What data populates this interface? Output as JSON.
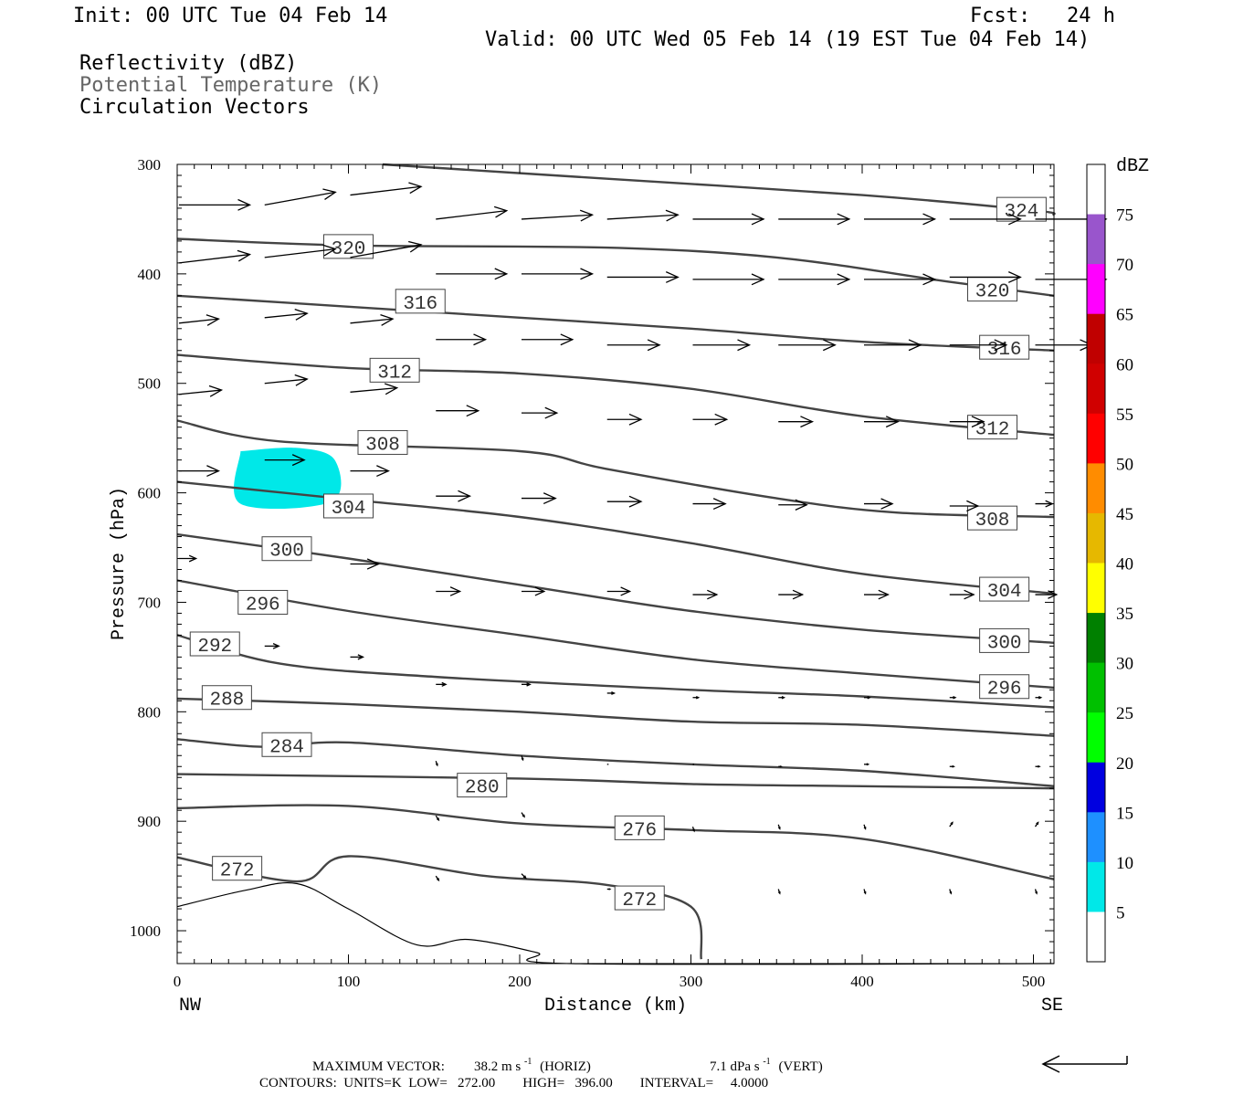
{
  "header": {
    "init": "Init: 00 UTC Tue 04 Feb 14",
    "fcst": "Fcst:   24 h",
    "valid": "Valid: 00 UTC Wed 05 Feb 14 (19 EST Tue 04 Feb 14)",
    "field1": "Reflectivity (dBZ)",
    "field2": "Potential Temperature (K)",
    "field3": "Circulation Vectors"
  },
  "colors": {
    "field2_text": "#666666",
    "contour": "#444444",
    "reflectivity_fill": "#00e8e8"
  },
  "chart_data": {
    "type": "vertical cross-section",
    "xlabel": "Distance (km)",
    "ylabel": "Pressure (hPa)",
    "xlim": [
      0,
      512
    ],
    "ylim": [
      1030,
      300
    ],
    "x_ticks": [
      0,
      100,
      200,
      300,
      400,
      500
    ],
    "y_ticks": [
      300,
      400,
      500,
      600,
      700,
      800,
      900,
      1000
    ],
    "left_label": "NW",
    "right_label": "SE",
    "theta_contours": [
      {
        "value": 324,
        "label_at": [
          493,
          341
        ],
        "points": [
          [
            120,
            300
          ],
          [
            250,
            313
          ],
          [
            400,
            328
          ],
          [
            500,
            342
          ],
          [
            512,
            346
          ]
        ]
      },
      {
        "value": 320,
        "label_at": [
          100,
          375
        ],
        "points": [
          [
            0,
            368
          ],
          [
            100,
            374
          ],
          [
            250,
            376
          ],
          [
            350,
            385
          ],
          [
            450,
            407
          ],
          [
            512,
            420
          ]
        ]
      },
      {
        "value": 320,
        "label_at": [
          476,
          414
        ],
        "points": []
      },
      {
        "value": 316,
        "label_at": [
          142,
          425
        ],
        "points": [
          [
            0,
            420
          ],
          [
            100,
            430
          ],
          [
            200,
            440
          ],
          [
            300,
            450
          ],
          [
            400,
            462
          ],
          [
            512,
            470
          ]
        ]
      },
      {
        "value": 316,
        "label_at": [
          483,
          467
        ],
        "points": []
      },
      {
        "value": 312,
        "label_at": [
          127,
          488
        ],
        "points": [
          [
            0,
            474
          ],
          [
            100,
            486
          ],
          [
            200,
            491
          ],
          [
            300,
            505
          ],
          [
            400,
            530
          ],
          [
            512,
            547
          ]
        ]
      },
      {
        "value": 312,
        "label_at": [
          476,
          540
        ],
        "points": []
      },
      {
        "value": 308,
        "label_at": [
          120,
          554
        ],
        "points": [
          [
            0,
            534
          ],
          [
            60,
            553
          ],
          [
            200,
            562
          ],
          [
            250,
            578
          ],
          [
            350,
            605
          ],
          [
            420,
            618
          ],
          [
            512,
            622
          ]
        ]
      },
      {
        "value": 308,
        "label_at": [
          476,
          623
        ],
        "points": []
      },
      {
        "value": 304,
        "label_at": [
          100,
          612
        ],
        "points": [
          [
            0,
            590
          ],
          [
            100,
            606
          ],
          [
            200,
            622
          ],
          [
            300,
            646
          ],
          [
            400,
            674
          ],
          [
            512,
            692
          ]
        ]
      },
      {
        "value": 304,
        "label_at": [
          483,
          688
        ],
        "points": []
      },
      {
        "value": 300,
        "label_at": [
          64,
          651
        ],
        "points": [
          [
            0,
            638
          ],
          [
            100,
            660
          ],
          [
            200,
            684
          ],
          [
            300,
            708
          ],
          [
            400,
            725
          ],
          [
            512,
            737
          ]
        ]
      },
      {
        "value": 300,
        "label_at": [
          483,
          735
        ],
        "points": []
      },
      {
        "value": 296,
        "label_at": [
          50,
          700
        ],
        "points": [
          [
            0,
            680
          ],
          [
            100,
            708
          ],
          [
            200,
            730
          ],
          [
            300,
            752
          ],
          [
            400,
            765
          ],
          [
            512,
            778
          ]
        ]
      },
      {
        "value": 296,
        "label_at": [
          483,
          777
        ],
        "points": []
      },
      {
        "value": 292,
        "label_at": [
          22,
          738
        ],
        "points": [
          [
            0,
            730
          ],
          [
            60,
            756
          ],
          [
            150,
            768
          ],
          [
            300,
            780
          ],
          [
            400,
            786
          ],
          [
            512,
            796
          ]
        ]
      },
      {
        "value": 288,
        "label_at": [
          29,
          787
        ],
        "points": [
          [
            0,
            788
          ],
          [
            100,
            793
          ],
          [
            200,
            800
          ],
          [
            300,
            809
          ],
          [
            400,
            812
          ],
          [
            512,
            822
          ]
        ]
      },
      {
        "value": 284,
        "label_at": [
          64,
          830
        ],
        "points": [
          [
            0,
            825
          ],
          [
            50,
            832
          ],
          [
            100,
            828
          ],
          [
            200,
            840
          ],
          [
            300,
            848
          ],
          [
            400,
            854
          ],
          [
            512,
            868
          ]
        ]
      },
      {
        "value": 280,
        "label_at": [
          178,
          867
        ],
        "points": [
          [
            0,
            857
          ],
          [
            200,
            861
          ],
          [
            300,
            866
          ],
          [
            400,
            868
          ],
          [
            512,
            870
          ]
        ]
      },
      {
        "value": 276,
        "label_at": [
          270,
          906
        ],
        "points": [
          [
            0,
            888
          ],
          [
            100,
            886
          ],
          [
            200,
            902
          ],
          [
            300,
            908
          ],
          [
            400,
            916
          ],
          [
            512,
            953
          ]
        ]
      },
      {
        "value": 272,
        "label_at": [
          35,
          943
        ],
        "points": [
          [
            0,
            933
          ],
          [
            70,
            955
          ],
          [
            100,
            932
          ],
          [
            180,
            950
          ],
          [
            250,
            958
          ],
          [
            300,
            978
          ],
          [
            306,
            1026
          ]
        ]
      },
      {
        "value": 272,
        "label_at": [
          270,
          970
        ],
        "points": []
      }
    ],
    "terrain_pressure": [
      [
        0,
        978
      ],
      [
        40,
        963
      ],
      [
        70,
        957
      ],
      [
        100,
        980
      ],
      [
        140,
        1013
      ],
      [
        170,
        1008
      ],
      [
        210,
        1020
      ],
      [
        230,
        1030
      ],
      [
        512,
        1030
      ]
    ],
    "reflectivity_areas": [
      {
        "dbz": "5-10",
        "points": [
          [
            37,
            562
          ],
          [
            70,
            559
          ],
          [
            92,
            570
          ],
          [
            90,
            608
          ],
          [
            37,
            610
          ]
        ]
      }
    ],
    "circulation_vectors": [
      {
        "x": 0,
        "p": 337,
        "u": 50,
        "w": 0
      },
      {
        "x": 50,
        "p": 337,
        "u": 50,
        "w": -3
      },
      {
        "x": 100,
        "p": 328,
        "u": 50,
        "w": -2
      },
      {
        "x": 150,
        "p": 350,
        "u": 50,
        "w": -2
      },
      {
        "x": 200,
        "p": 350,
        "u": 50,
        "w": -1
      },
      {
        "x": 250,
        "p": 350,
        "u": 50,
        "w": -1
      },
      {
        "x": 300,
        "p": 350,
        "u": 50,
        "w": 0
      },
      {
        "x": 350,
        "p": 350,
        "u": 50,
        "w": 0
      },
      {
        "x": 400,
        "p": 350,
        "u": 50,
        "w": 0
      },
      {
        "x": 450,
        "p": 350,
        "u": 50,
        "w": 0
      },
      {
        "x": 500,
        "p": 350,
        "u": 50,
        "w": 0
      },
      {
        "x": 0,
        "p": 390,
        "u": 50,
        "w": -2
      },
      {
        "x": 50,
        "p": 385,
        "u": 50,
        "w": -2
      },
      {
        "x": 100,
        "p": 385,
        "u": 50,
        "w": -3
      },
      {
        "x": 150,
        "p": 400,
        "u": 50,
        "w": 0
      },
      {
        "x": 200,
        "p": 400,
        "u": 50,
        "w": 0
      },
      {
        "x": 250,
        "p": 403,
        "u": 50,
        "w": 0
      },
      {
        "x": 300,
        "p": 405,
        "u": 50,
        "w": 0
      },
      {
        "x": 350,
        "p": 405,
        "u": 50,
        "w": 0
      },
      {
        "x": 400,
        "p": 405,
        "u": 50,
        "w": 0
      },
      {
        "x": 450,
        "p": 403,
        "u": 50,
        "w": 0
      },
      {
        "x": 500,
        "p": 405,
        "u": 50,
        "w": 0
      },
      {
        "x": 0,
        "p": 445,
        "u": 28,
        "w": -1
      },
      {
        "x": 50,
        "p": 440,
        "u": 30,
        "w": -1
      },
      {
        "x": 100,
        "p": 445,
        "u": 30,
        "w": -1
      },
      {
        "x": 150,
        "p": 460,
        "u": 35,
        "w": 0
      },
      {
        "x": 200,
        "p": 460,
        "u": 36,
        "w": 0
      },
      {
        "x": 250,
        "p": 465,
        "u": 37,
        "w": 0
      },
      {
        "x": 300,
        "p": 465,
        "u": 40,
        "w": 0
      },
      {
        "x": 350,
        "p": 465,
        "u": 40,
        "w": 0
      },
      {
        "x": 400,
        "p": 465,
        "u": 40,
        "w": 0
      },
      {
        "x": 450,
        "p": 465,
        "u": 40,
        "w": 0
      },
      {
        "x": 500,
        "p": 465,
        "u": 40,
        "w": 0
      },
      {
        "x": 0,
        "p": 510,
        "u": 30,
        "w": -1
      },
      {
        "x": 50,
        "p": 500,
        "u": 30,
        "w": -1
      },
      {
        "x": 100,
        "p": 508,
        "u": 33,
        "w": -1
      },
      {
        "x": 150,
        "p": 525,
        "u": 30,
        "w": 0
      },
      {
        "x": 200,
        "p": 527,
        "u": 25,
        "w": 0
      },
      {
        "x": 250,
        "p": 533,
        "u": 24,
        "w": 0
      },
      {
        "x": 300,
        "p": 533,
        "u": 24,
        "w": 0
      },
      {
        "x": 350,
        "p": 535,
        "u": 24,
        "w": 0
      },
      {
        "x": 400,
        "p": 535,
        "u": 24,
        "w": 0
      },
      {
        "x": 450,
        "p": 535,
        "u": 24,
        "w": 0
      },
      {
        "x": 0,
        "p": 580,
        "u": 28,
        "w": 0
      },
      {
        "x": 50,
        "p": 570,
        "u": 28,
        "w": 0
      },
      {
        "x": 100,
        "p": 580,
        "u": 27,
        "w": 0
      },
      {
        "x": 150,
        "p": 603,
        "u": 24,
        "w": 0
      },
      {
        "x": 200,
        "p": 605,
        "u": 24,
        "w": 0
      },
      {
        "x": 250,
        "p": 608,
        "u": 24,
        "w": 0
      },
      {
        "x": 300,
        "p": 610,
        "u": 23,
        "w": 0
      },
      {
        "x": 350,
        "p": 611,
        "u": 20,
        "w": 0
      },
      {
        "x": 400,
        "p": 610,
        "u": 20,
        "w": 0
      },
      {
        "x": 450,
        "p": 612,
        "u": 20,
        "w": 0
      },
      {
        "x": 500,
        "p": 610,
        "u": 12,
        "w": 0
      },
      {
        "x": 0,
        "p": 660,
        "u": 12,
        "w": 0
      },
      {
        "x": 100,
        "p": 665,
        "u": 20,
        "w": 0
      },
      {
        "x": 150,
        "p": 690,
        "u": 17,
        "w": 0
      },
      {
        "x": 200,
        "p": 690,
        "u": 16,
        "w": 0
      },
      {
        "x": 250,
        "p": 690,
        "u": 16,
        "w": 0
      },
      {
        "x": 300,
        "p": 693,
        "u": 17,
        "w": 0
      },
      {
        "x": 350,
        "p": 693,
        "u": 17,
        "w": 0
      },
      {
        "x": 400,
        "p": 693,
        "u": 17,
        "w": 0
      },
      {
        "x": 450,
        "p": 693,
        "u": 17,
        "w": 0
      },
      {
        "x": 500,
        "p": 693,
        "u": 15,
        "w": 0
      },
      {
        "x": 50,
        "p": 740,
        "u": 10,
        "w": 0
      },
      {
        "x": 100,
        "p": 750,
        "u": 9,
        "w": 0
      },
      {
        "x": 150,
        "p": 775,
        "u": 7,
        "w": 0
      },
      {
        "x": 200,
        "p": 775,
        "u": 6,
        "w": 0
      },
      {
        "x": 250,
        "p": 783,
        "u": 5,
        "w": 0
      },
      {
        "x": 300,
        "p": 787,
        "u": 4,
        "w": 0
      },
      {
        "x": 350,
        "p": 787,
        "u": 4,
        "w": 0
      },
      {
        "x": 400,
        "p": 787,
        "u": 4,
        "w": 0
      },
      {
        "x": 450,
        "p": 787,
        "u": 4,
        "w": 0
      },
      {
        "x": 500,
        "p": 787,
        "u": 4,
        "w": 0
      },
      {
        "x": 150,
        "p": 845,
        "u": 1,
        "w": 1
      },
      {
        "x": 200,
        "p": 840,
        "u": 1,
        "w": 1
      },
      {
        "x": 250,
        "p": 848,
        "u": 1,
        "w": 0
      },
      {
        "x": 300,
        "p": 848,
        "u": 1,
        "w": 0
      },
      {
        "x": 350,
        "p": 850,
        "u": 2,
        "w": 0
      },
      {
        "x": 400,
        "p": 848,
        "u": 3,
        "w": 0
      },
      {
        "x": 450,
        "p": 850,
        "u": 3,
        "w": 0
      },
      {
        "x": 500,
        "p": 850,
        "u": 3,
        "w": 0
      },
      {
        "x": 150,
        "p": 895,
        "u": 2,
        "w": 1
      },
      {
        "x": 200,
        "p": 892,
        "u": 2,
        "w": 1
      },
      {
        "x": 300,
        "p": 905,
        "u": 1,
        "w": 1
      },
      {
        "x": 350,
        "p": 903,
        "u": 1,
        "w": 1
      },
      {
        "x": 400,
        "p": 903,
        "u": 1,
        "w": 1
      },
      {
        "x": 450,
        "p": 905,
        "u": 2,
        "w": -1
      },
      {
        "x": 500,
        "p": 905,
        "u": 2,
        "w": -1
      },
      {
        "x": 150,
        "p": 950,
        "u": 2,
        "w": 1
      },
      {
        "x": 200,
        "p": 948,
        "u": 3,
        "w": 1
      },
      {
        "x": 250,
        "p": 962,
        "u": 2,
        "w": 0
      },
      {
        "x": 350,
        "p": 962,
        "u": 1,
        "w": 1
      },
      {
        "x": 400,
        "p": 962,
        "u": 1,
        "w": 1
      },
      {
        "x": 450,
        "p": 962,
        "u": 1,
        "w": 1
      },
      {
        "x": 500,
        "p": 962,
        "u": 1,
        "w": 1
      }
    ],
    "colorbar": {
      "title": "dBZ",
      "labels": [
        "75",
        "70",
        "65",
        "60",
        "55",
        "50",
        "45",
        "40",
        "35",
        "30",
        "25",
        "20",
        "15",
        "10",
        "5"
      ],
      "colors": [
        "#ffffff",
        "#9955cc",
        "#ff00ff",
        "#c00000",
        "#d00000",
        "#ff0000",
        "#ff8c00",
        "#e6b800",
        "#ffff00",
        "#008000",
        "#00c000",
        "#00ff00",
        "#0000e0",
        "#1e90ff",
        "#00e8e8",
        "#ffffff"
      ]
    },
    "footer": {
      "max_vector_label": "MAXIMUM VECTOR:",
      "max_vector_horiz": "38.2 m s",
      "horiz_suffix": "(HORIZ)",
      "max_vector_vert": "7.1 dPa s",
      "vert_suffix": "(VERT)",
      "exponent": "-1",
      "contours_line": "CONTOURS:  UNITS=K  LOW=   272.00        HIGH=   396.00        INTERVAL=     4.0000"
    }
  }
}
